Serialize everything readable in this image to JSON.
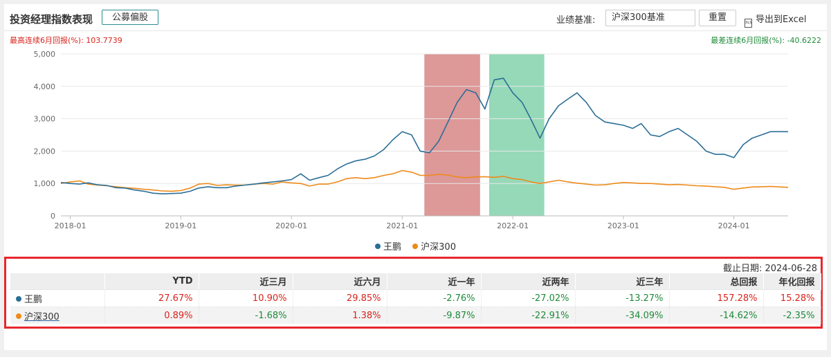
{
  "header": {
    "title": "投资经理指数表现",
    "fund_type_button": "公募偏股",
    "benchmark_label": "业绩基准:",
    "benchmark_value": "沪深300基准",
    "reset_button": "重置",
    "export_icon_text": "XLS",
    "export_button": "导出到Excel"
  },
  "stats": {
    "max_consecutive": "最高连续6月回报(%): 103.7739",
    "min_consecutive": "最差连续6月回报(%): -40.6222"
  },
  "colors": {
    "manager": "#2a6e96",
    "benchmark": "#ee8a1a",
    "max_band": "#dd9898",
    "min_band": "#96d9b8",
    "positive": "#d9231c",
    "negative": "#1e8a3a"
  },
  "chart_data": {
    "type": "line",
    "y_ticks": [
      "0",
      "1,000",
      "2,000",
      "3,000",
      "4,000",
      "5,000"
    ],
    "ylim": [
      0,
      5000
    ],
    "x_ticks": [
      "2018-01",
      "2019-01",
      "2020-01",
      "2021-01",
      "2022-01",
      "2023-01",
      "2024-01"
    ],
    "xlim": [
      "2017-12-01",
      "2024-06-28"
    ],
    "grid": "horizontal",
    "legend_position": "bottom-center",
    "highlight_bands": [
      {
        "kind": "max",
        "from": "2021-03-15",
        "to": "2021-09-15"
      },
      {
        "kind": "min",
        "from": "2021-10-15",
        "to": "2022-04-15"
      }
    ],
    "series": [
      {
        "name": "王鹏",
        "x": [
          "2017-12-01",
          "2018-01-01",
          "2018-02-01",
          "2018-03-01",
          "2018-04-01",
          "2018-05-01",
          "2018-06-01",
          "2018-07-01",
          "2018-08-01",
          "2018-09-01",
          "2018-10-01",
          "2018-11-01",
          "2018-12-01",
          "2019-01-01",
          "2019-02-01",
          "2019-03-01",
          "2019-04-01",
          "2019-05-01",
          "2019-06-01",
          "2019-07-01",
          "2019-08-01",
          "2019-09-01",
          "2019-10-01",
          "2019-11-01",
          "2019-12-01",
          "2020-01-01",
          "2020-02-01",
          "2020-03-01",
          "2020-04-01",
          "2020-05-01",
          "2020-06-01",
          "2020-07-01",
          "2020-08-01",
          "2020-09-01",
          "2020-10-01",
          "2020-11-01",
          "2020-12-01",
          "2021-01-01",
          "2021-02-01",
          "2021-03-01",
          "2021-04-01",
          "2021-05-01",
          "2021-06-01",
          "2021-07-01",
          "2021-08-01",
          "2021-09-01",
          "2021-10-01",
          "2021-11-01",
          "2021-12-01",
          "2022-01-01",
          "2022-02-01",
          "2022-03-01",
          "2022-04-01",
          "2022-05-01",
          "2022-06-01",
          "2022-07-01",
          "2022-08-01",
          "2022-09-01",
          "2022-10-01",
          "2022-11-01",
          "2022-12-01",
          "2023-01-01",
          "2023-02-01",
          "2023-03-01",
          "2023-04-01",
          "2023-05-01",
          "2023-06-01",
          "2023-07-01",
          "2023-08-01",
          "2023-09-01",
          "2023-10-01",
          "2023-11-01",
          "2023-12-01",
          "2024-01-01",
          "2024-02-01",
          "2024-03-01",
          "2024-04-01",
          "2024-05-01",
          "2024-06-28"
        ],
        "values": [
          1030,
          1000,
          980,
          1020,
          960,
          940,
          870,
          860,
          800,
          760,
          700,
          680,
          690,
          700,
          760,
          860,
          900,
          870,
          870,
          920,
          950,
          980,
          1020,
          1050,
          1080,
          1120,
          1300,
          1100,
          1180,
          1250,
          1450,
          1600,
          1700,
          1750,
          1850,
          2050,
          2350,
          2600,
          2500,
          2000,
          1950,
          2300,
          2900,
          3500,
          3900,
          3800,
          3300,
          4200,
          4250,
          3800,
          3500,
          3000,
          2400,
          3000,
          3400,
          3600,
          3800,
          3500,
          3100,
          2900,
          2850,
          2800,
          2700,
          2850,
          2500,
          2450,
          2600,
          2700,
          2500,
          2300,
          2000,
          1900,
          1900,
          1800,
          2200,
          2400,
          2500,
          2600,
          2600
        ]
      },
      {
        "name": "沪深300",
        "x": [
          "2017-12-01",
          "2018-01-01",
          "2018-02-01",
          "2018-03-01",
          "2018-04-01",
          "2018-05-01",
          "2018-06-01",
          "2018-07-01",
          "2018-08-01",
          "2018-09-01",
          "2018-10-01",
          "2018-11-01",
          "2018-12-01",
          "2019-01-01",
          "2019-02-01",
          "2019-03-01",
          "2019-04-01",
          "2019-05-01",
          "2019-06-01",
          "2019-07-01",
          "2019-08-01",
          "2019-09-01",
          "2019-10-01",
          "2019-11-01",
          "2019-12-01",
          "2020-01-01",
          "2020-02-01",
          "2020-03-01",
          "2020-04-01",
          "2020-05-01",
          "2020-06-01",
          "2020-07-01",
          "2020-08-01",
          "2020-09-01",
          "2020-10-01",
          "2020-11-01",
          "2020-12-01",
          "2021-01-01",
          "2021-02-01",
          "2021-03-01",
          "2021-04-01",
          "2021-05-01",
          "2021-06-01",
          "2021-07-01",
          "2021-08-01",
          "2021-09-01",
          "2021-10-01",
          "2021-11-01",
          "2021-12-01",
          "2022-01-01",
          "2022-02-01",
          "2022-03-01",
          "2022-04-01",
          "2022-05-01",
          "2022-06-01",
          "2022-07-01",
          "2022-08-01",
          "2022-09-01",
          "2022-10-01",
          "2022-11-01",
          "2022-12-01",
          "2023-01-01",
          "2023-02-01",
          "2023-03-01",
          "2023-04-01",
          "2023-05-01",
          "2023-06-01",
          "2023-07-01",
          "2023-08-01",
          "2023-09-01",
          "2023-10-01",
          "2023-11-01",
          "2023-12-01",
          "2024-01-01",
          "2024-02-01",
          "2024-03-01",
          "2024-04-01",
          "2024-05-01",
          "2024-06-28"
        ],
        "values": [
          1000,
          1050,
          1080,
          980,
          950,
          930,
          900,
          870,
          850,
          820,
          800,
          770,
          760,
          780,
          860,
          980,
          1000,
          940,
          960,
          950,
          950,
          980,
          1000,
          980,
          1050,
          1020,
          1000,
          920,
          980,
          980,
          1050,
          1150,
          1180,
          1150,
          1180,
          1250,
          1300,
          1400,
          1350,
          1250,
          1250,
          1280,
          1260,
          1200,
          1180,
          1200,
          1210,
          1190,
          1220,
          1150,
          1120,
          1050,
          1000,
          1050,
          1100,
          1050,
          1010,
          980,
          950,
          960,
          1000,
          1030,
          1020,
          1000,
          1000,
          980,
          960,
          970,
          950,
          930,
          920,
          900,
          880,
          820,
          860,
          890,
          900,
          910,
          880
        ]
      }
    ]
  },
  "performance_table": {
    "as_of": "截止日期: 2024-06-28",
    "columns": [
      "YTD",
      "近三月",
      "近六月",
      "近一年",
      "近两年",
      "近三年",
      "总回报",
      "年化回报"
    ],
    "rows": [
      {
        "name": "王鹏",
        "values": [
          "27.67%",
          "10.90%",
          "29.85%",
          "-2.76%",
          "-27.02%",
          "-13.27%",
          "157.28%",
          "15.28%"
        ]
      },
      {
        "name": "沪深300",
        "values": [
          "0.89%",
          "-1.68%",
          "1.38%",
          "-9.87%",
          "-22.91%",
          "-34.09%",
          "-14.62%",
          "-2.35%"
        ]
      }
    ]
  }
}
